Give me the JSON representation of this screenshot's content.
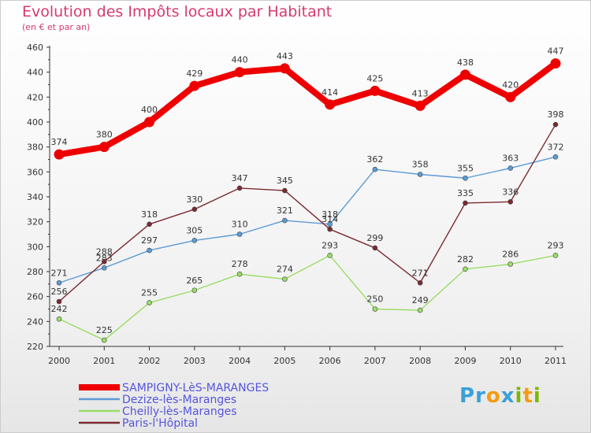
{
  "title": "Evolution des Impôts locaux par Habitant",
  "subtitle": "(en € et par an)",
  "logo": {
    "letters": [
      "P",
      "r",
      "o",
      "x",
      "i",
      "t",
      "i"
    ],
    "colors": [
      "#3aa0d8",
      "#3aa0d8",
      "#f39c12",
      "#3aa0d8",
      "#7ab800",
      "#f39c12",
      "#7ab800"
    ]
  },
  "chart_data": {
    "type": "line",
    "x": [
      "2000",
      "2001",
      "2002",
      "2003",
      "2004",
      "2005",
      "2006",
      "2007",
      "2008",
      "2009",
      "2010",
      "2011"
    ],
    "ylim": [
      220,
      460
    ],
    "yticks": [
      220,
      240,
      260,
      280,
      300,
      320,
      340,
      360,
      380,
      400,
      420,
      440,
      460
    ],
    "grid": false,
    "legend_position": "bottom-left",
    "series": [
      {
        "name": "Dezize-lès-Maranges",
        "color": "#5b9bd5",
        "values": [
          271,
          283,
          297,
          305,
          310,
          321,
          318,
          362,
          358,
          355,
          363,
          372
        ]
      },
      {
        "name": "Cheilly-lès-Maranges",
        "color": "#99dd66",
        "values": [
          242,
          225,
          255,
          265,
          278,
          274,
          293,
          250,
          249,
          282,
          286,
          293
        ]
      },
      {
        "name": "Paris-l'Hôpital",
        "color": "#7b2a30",
        "values": [
          256,
          288,
          318,
          330,
          347,
          345,
          314,
          299,
          271,
          335,
          336,
          398
        ]
      },
      {
        "name": "SAMPIGNY-LèS-MARANGES",
        "color": "#ee0000",
        "values": [
          374,
          380,
          400,
          429,
          440,
          443,
          414,
          425,
          413,
          438,
          420,
          447
        ]
      }
    ],
    "legend_order": [
      "SAMPIGNY-LèS-MARANGES",
      "Dezize-lès-Maranges",
      "Cheilly-lès-Maranges",
      "Paris-l'Hôpital"
    ]
  }
}
